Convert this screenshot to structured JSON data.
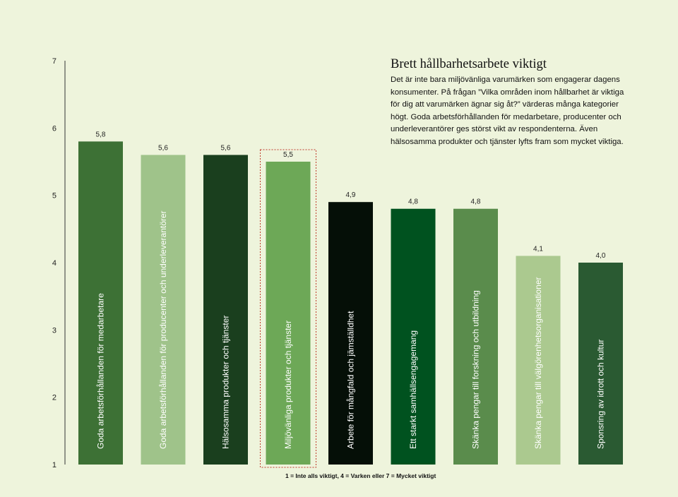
{
  "text": {
    "heading": "Brett hållbarhetsarbete viktigt",
    "body": "Det är inte bara miljövänliga varumärken som engagerar dagens konsumenter. På frågan ”Vilka områden inom hållbarhet är viktiga för dig att varumärken ägnar sig åt?” värderas många kategorier högt. Goda arbetsförhållanden för medarbetare, producenter och underleverantörer ges störst vikt av respondenterna. Även hälsosamma produkter och tjänster lyfts fram som mycket viktiga."
  },
  "chart_data": {
    "type": "bar",
    "title": "",
    "xlabel": "",
    "ylabel": "",
    "ylim": [
      1,
      7
    ],
    "yticks": [
      1,
      2,
      3,
      4,
      5,
      6,
      7
    ],
    "grid": false,
    "footnote": "1 = Inte alls viktigt, 4 = Varken eller 7 = Mycket viktigt",
    "highlighted_index": 3,
    "categories": [
      "Goda arbetsförhållanden för medarbetare",
      "Goda arbetsförhållanden för producenter och underleverantörer",
      "Hälsosamma produkter och tjänster",
      "Miljövänliga produkter och tjänster",
      "Arbete för mångfald och jämställdhet",
      "Ett starkt samhällsengagemang",
      "Skänka pengar till forskning och utbildning",
      "Skänka pengar till välgörenhetsorganisationer",
      "Sponsring av idrott och kultur"
    ],
    "values": [
      5.8,
      5.6,
      5.6,
      5.5,
      4.9,
      4.8,
      4.8,
      4.1,
      4.0
    ],
    "value_labels": [
      "5,8",
      "5,6",
      "5,6",
      "5,5",
      "4,9",
      "4,8",
      "4,8",
      "4,1",
      "4,0"
    ],
    "colors": [
      "#3d7135",
      "#9fc38a",
      "#1a3f1e",
      "#6da857",
      "#050f07",
      "#00521f",
      "#5a8c4c",
      "#abc98f",
      "#2a5a32"
    ]
  }
}
